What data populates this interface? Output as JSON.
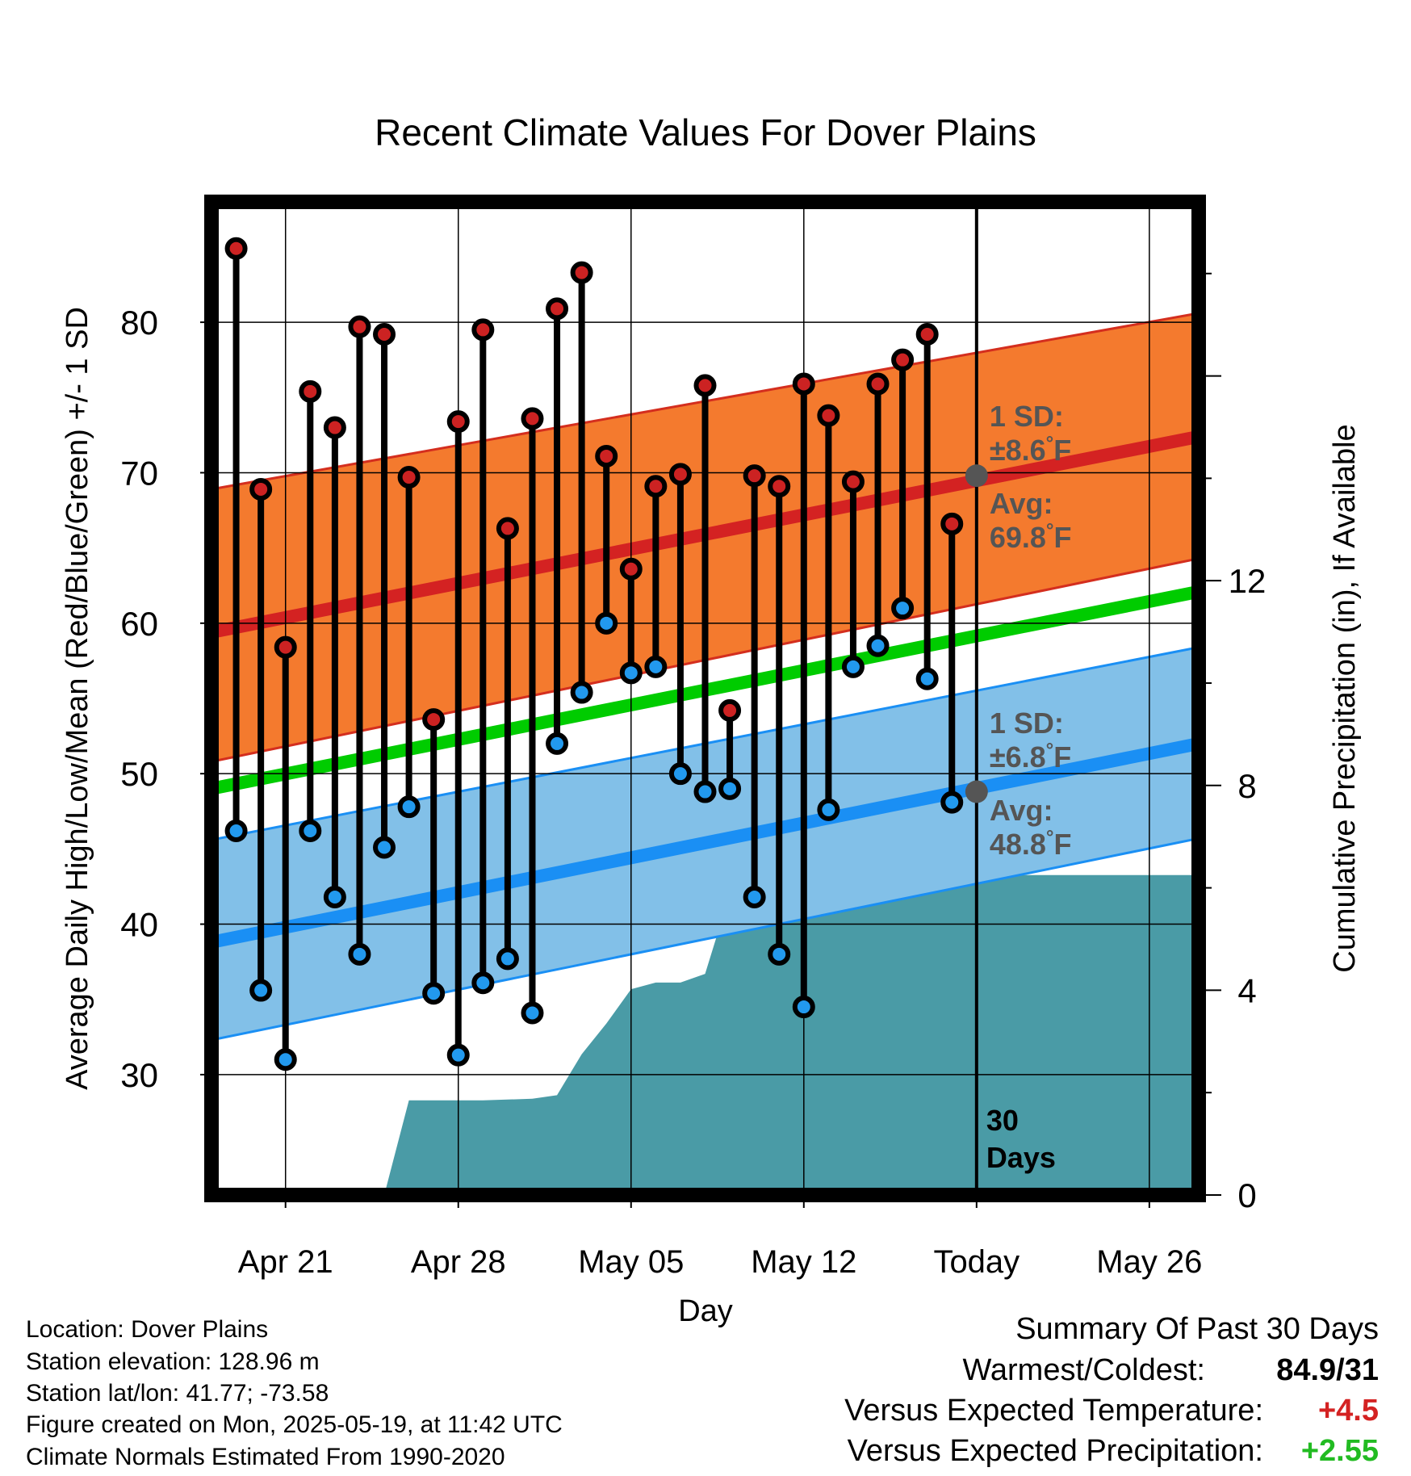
{
  "chart_data": {
    "type": "line",
    "title": "Recent Climate Values For Dover Plains",
    "xlabel": "Day",
    "ylabel": "Average Daily High/Low/Mean (Red/Blue/Green) +/- 1 SD",
    "y2label": "Cumulative Precipitation (in), If Available",
    "x_tick_labels": [
      "Apr 21",
      "Apr 28",
      "May 05",
      "May 12",
      "Today",
      "May 26"
    ],
    "x_tick_dates": [
      "2025-04-21",
      "2025-04-28",
      "2025-05-05",
      "2025-05-12",
      "2025-05-19",
      "2025-05-26"
    ],
    "xlim": [
      "2025-04-18",
      "2025-05-28"
    ],
    "ylim": [
      22,
      88
    ],
    "y_ticks": [
      30,
      40,
      50,
      60,
      70,
      80
    ],
    "y2lim": [
      0,
      19.4
    ],
    "y2_ticks": [
      0,
      4,
      8,
      12
    ],
    "grid": true,
    "today": "2025-05-19",
    "window_label": [
      "30",
      "Days"
    ],
    "high_avg": {
      "name": "Average High",
      "line": [
        {
          "x": "2025-04-18",
          "y": 59.4
        },
        {
          "x": "2025-05-28",
          "y": 72.4
        }
      ],
      "band": {
        "upper": [
          {
            "x": "2025-04-18",
            "y": 68.9
          },
          {
            "x": "2025-05-28",
            "y": 80.6
          }
        ],
        "lower": [
          {
            "x": "2025-04-18",
            "y": 50.8
          },
          {
            "x": "2025-05-28",
            "y": 64.3
          }
        ]
      },
      "sd_label": "1 SD:",
      "sd_value": "±8.6°F",
      "avg_label": "Avg:",
      "avg_value": "69.8°F",
      "today_value": 69.8
    },
    "low_avg": {
      "name": "Average Low",
      "line": [
        {
          "x": "2025-04-18",
          "y": 38.8
        },
        {
          "x": "2025-05-28",
          "y": 52.0
        }
      ],
      "band": {
        "upper": [
          {
            "x": "2025-04-18",
            "y": 45.6
          },
          {
            "x": "2025-05-28",
            "y": 58.4
          }
        ],
        "lower": [
          {
            "x": "2025-04-18",
            "y": 32.3
          },
          {
            "x": "2025-05-28",
            "y": 45.7
          }
        ]
      },
      "sd_label": "1 SD:",
      "sd_value": "±6.8°F",
      "avg_label": "Avg:",
      "avg_value": "48.8°F",
      "today_value": 48.8
    },
    "mean_avg": {
      "name": "Average Mean",
      "line": [
        {
          "x": "2025-04-18",
          "y": 49.0
        },
        {
          "x": "2025-05-28",
          "y": 62.1
        }
      ]
    },
    "daily": [
      {
        "date": "2025-04-19",
        "high": 84.9,
        "low": 46.2
      },
      {
        "date": "2025-04-20",
        "high": 68.9,
        "low": 35.6
      },
      {
        "date": "2025-04-21",
        "high": 58.4,
        "low": 31.0
      },
      {
        "date": "2025-04-22",
        "high": 75.4,
        "low": 46.2
      },
      {
        "date": "2025-04-23",
        "high": 73.0,
        "low": 41.8
      },
      {
        "date": "2025-04-24",
        "high": 79.7,
        "low": 38.0
      },
      {
        "date": "2025-04-25",
        "high": 79.2,
        "low": 45.1
      },
      {
        "date": "2025-04-26",
        "high": 69.7,
        "low": 47.8
      },
      {
        "date": "2025-04-27",
        "high": 53.6,
        "low": 35.4
      },
      {
        "date": "2025-04-28",
        "high": 73.4,
        "low": 31.3
      },
      {
        "date": "2025-04-29",
        "high": 79.5,
        "low": 36.1
      },
      {
        "date": "2025-04-30",
        "high": 66.3,
        "low": 37.7
      },
      {
        "date": "2025-05-01",
        "high": 73.6,
        "low": 34.1
      },
      {
        "date": "2025-05-02",
        "high": 80.9,
        "low": 52.0
      },
      {
        "date": "2025-05-03",
        "high": 83.3,
        "low": 55.4
      },
      {
        "date": "2025-05-04",
        "high": 71.1,
        "low": 60.0
      },
      {
        "date": "2025-05-05",
        "high": 63.6,
        "low": 56.7
      },
      {
        "date": "2025-05-06",
        "high": 69.1,
        "low": 57.1
      },
      {
        "date": "2025-05-07",
        "high": 69.9,
        "low": 50.0
      },
      {
        "date": "2025-05-08",
        "high": 75.8,
        "low": 48.8
      },
      {
        "date": "2025-05-09",
        "high": 54.2,
        "low": 49.0
      },
      {
        "date": "2025-05-10",
        "high": 69.8,
        "low": 41.8
      },
      {
        "date": "2025-05-11",
        "high": 69.1,
        "low": 38.0
      },
      {
        "date": "2025-05-12",
        "high": 75.9,
        "low": 34.5
      },
      {
        "date": "2025-05-13",
        "high": 73.8,
        "low": 47.6
      },
      {
        "date": "2025-05-14",
        "high": 69.4,
        "low": 57.1
      },
      {
        "date": "2025-05-15",
        "high": 75.9,
        "low": 58.5
      },
      {
        "date": "2025-05-16",
        "high": 77.5,
        "low": 61.0
      },
      {
        "date": "2025-05-17",
        "high": 79.2,
        "low": 56.3
      },
      {
        "date": "2025-05-18",
        "high": 66.6,
        "low": 48.1
      }
    ],
    "precip_cumulative": [
      {
        "x": "2025-04-25",
        "y": 0.0
      },
      {
        "x": "2025-04-26",
        "y": 1.85
      },
      {
        "x": "2025-04-29",
        "y": 1.85
      },
      {
        "x": "2025-05-01",
        "y": 1.88
      },
      {
        "x": "2025-05-02",
        "y": 1.95
      },
      {
        "x": "2025-05-03",
        "y": 2.75
      },
      {
        "x": "2025-05-04",
        "y": 3.35
      },
      {
        "x": "2025-05-05",
        "y": 4.02
      },
      {
        "x": "2025-05-06",
        "y": 4.15
      },
      {
        "x": "2025-05-07",
        "y": 4.15
      },
      {
        "x": "2025-05-08",
        "y": 4.32
      },
      {
        "x": "2025-05-09",
        "y": 5.88
      },
      {
        "x": "2025-05-12",
        "y": 5.88
      },
      {
        "x": "2025-05-13",
        "y": 5.88
      },
      {
        "x": "2025-05-14",
        "y": 5.97
      },
      {
        "x": "2025-05-16",
        "y": 5.97
      },
      {
        "x": "2025-05-17",
        "y": 6.25
      },
      {
        "x": "2025-05-28",
        "y": 6.25
      }
    ],
    "colors": {
      "high_band": "#f47a2e",
      "high_band_edge": "#d42e1e",
      "high_line": "#d42222",
      "low_band": "#82c0e8",
      "low_band_edge": "#1a8ff4",
      "low_line": "#1a8ff4",
      "mean_line": "#00cc00",
      "precip": "#4a9ba6",
      "high_marker": "#cc2222",
      "low_marker": "#2299ee",
      "today_marker": "#555555",
      "annotation_text": "#555555"
    }
  },
  "station": {
    "location": "Location: Dover Plains",
    "elevation": "Station elevation: 128.96 m",
    "latlon": "Station lat/lon: 41.77; -73.58",
    "created": "Figure created on Mon, 2025-05-19, at 11:42 UTC",
    "normals": "Climate Normals Estimated From 1990-2020"
  },
  "summary": {
    "title": "Summary Of Past 30 Days",
    "warmest_coldest_label": "Warmest/Coldest:",
    "warmest_coldest_value": "84.9/31",
    "temp_label": "Versus Expected Temperature:",
    "temp_value": "+4.5",
    "precip_label": "Versus Expected Precipitation:",
    "precip_value": "+2.55",
    "temp_color": "#d42222",
    "precip_color": "#22bb22"
  }
}
